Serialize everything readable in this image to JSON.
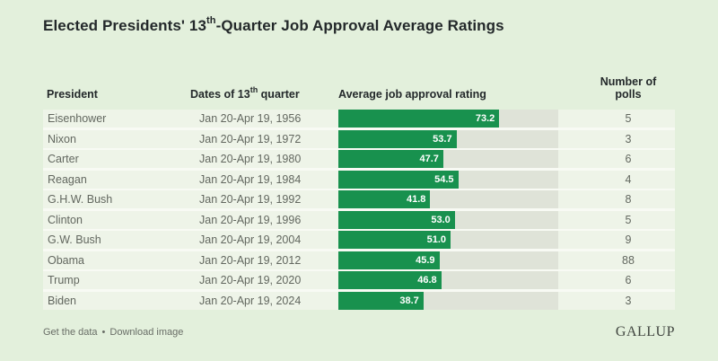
{
  "title": {
    "prefix": "Elected Presidents' 13",
    "superscript": "th",
    "suffix": "-Quarter Job Approval Average Ratings"
  },
  "columns": {
    "president": "President",
    "dates_prefix": "Dates of 13",
    "dates_superscript": "th",
    "dates_suffix": " quarter",
    "rating": "Average job approval rating",
    "polls_line1": "Number of",
    "polls_line2": "polls"
  },
  "rows": [
    {
      "president": "Eisenhower",
      "dates": "Jan 20-Apr 19, 1956",
      "rating": "73.2",
      "polls": "5"
    },
    {
      "president": "Nixon",
      "dates": "Jan 20-Apr 19, 1972",
      "rating": "53.7",
      "polls": "3"
    },
    {
      "president": "Carter",
      "dates": "Jan 20-Apr 19, 1980",
      "rating": "47.7",
      "polls": "6"
    },
    {
      "president": "Reagan",
      "dates": "Jan 20-Apr 19, 1984",
      "rating": "54.5",
      "polls": "4"
    },
    {
      "president": "G.H.W. Bush",
      "dates": "Jan 20-Apr 19, 1992",
      "rating": "41.8",
      "polls": "8"
    },
    {
      "president": "Clinton",
      "dates": "Jan 20-Apr 19, 1996",
      "rating": "53.0",
      "polls": "5"
    },
    {
      "president": "G.W. Bush",
      "dates": "Jan 20-Apr 19, 2004",
      "rating": "51.0",
      "polls": "9"
    },
    {
      "president": "Obama",
      "dates": "Jan 20-Apr 19, 2012",
      "rating": "45.9",
      "polls": "88"
    },
    {
      "president": "Trump",
      "dates": "Jan 20-Apr 19, 2020",
      "rating": "46.8",
      "polls": "6"
    },
    {
      "president": "Biden",
      "dates": "Jan 20-Apr 19, 2024",
      "rating": "38.7",
      "polls": "3"
    }
  ],
  "footer": {
    "link_get_data": "Get the data",
    "separator": "•",
    "link_download": "Download image",
    "logo": "GALLUP"
  },
  "colors": {
    "background": "#e3f0dc",
    "row": "#eef4e8",
    "separator": "#f8faf4",
    "track": "#dfe3d8",
    "bar": "#18914e",
    "text-dark": "#23282a",
    "text-gray": "#62675f",
    "footer": "#686d66",
    "logo": "#40453f"
  },
  "chart_data": {
    "type": "bar",
    "orientation": "horizontal",
    "title": "Elected Presidents' 13th-Quarter Job Approval Average Ratings",
    "categories": [
      "Eisenhower",
      "Nixon",
      "Carter",
      "Reagan",
      "G.H.W. Bush",
      "Clinton",
      "G.W. Bush",
      "Obama",
      "Trump",
      "Biden"
    ],
    "x": [
      "Jan 20-Apr 19, 1956",
      "Jan 20-Apr 19, 1972",
      "Jan 20-Apr 19, 1980",
      "Jan 20-Apr 19, 1984",
      "Jan 20-Apr 19, 1992",
      "Jan 20-Apr 19, 1996",
      "Jan 20-Apr 19, 2004",
      "Jan 20-Apr 19, 2012",
      "Jan 20-Apr 19, 2020",
      "Jan 20-Apr 19, 2024"
    ],
    "series": [
      {
        "name": "Average job approval rating",
        "values": [
          73.2,
          53.7,
          47.7,
          54.5,
          41.8,
          53.0,
          51.0,
          45.9,
          46.8,
          38.7
        ]
      },
      {
        "name": "Number of polls",
        "values": [
          5,
          3,
          6,
          4,
          8,
          5,
          9,
          88,
          6,
          3
        ]
      }
    ],
    "xlim": [
      0,
      100
    ],
    "grid": false,
    "legend": false,
    "bar_color": "#18914e",
    "value_labels": "inside-end"
  }
}
